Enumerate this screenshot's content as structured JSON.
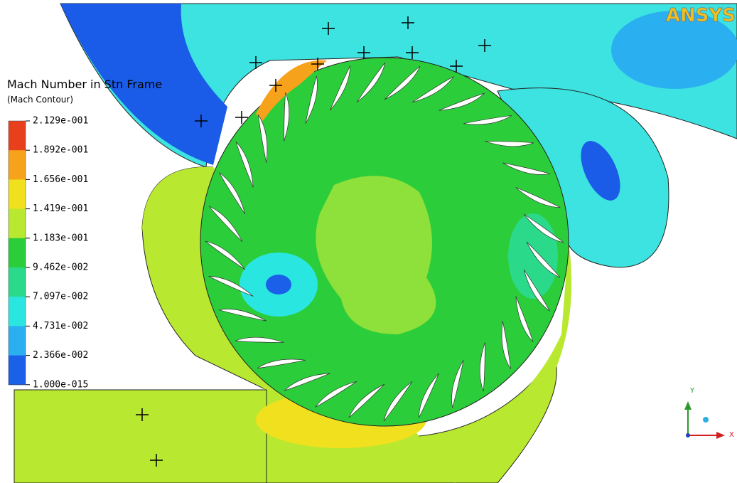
{
  "legend": {
    "title": "Mach Number in Stn Frame",
    "subtitle": "(Mach Contour)",
    "labels": [
      "2.129e-001",
      "1.892e-001",
      "1.656e-001",
      "1.419e-001",
      "1.183e-001",
      "9.462e-002",
      "7.097e-002",
      "4.731e-002",
      "2.366e-002",
      "1.000e-015"
    ]
  },
  "logo": "ANSYS",
  "axes": {
    "y": "Y",
    "x": "X"
  }
}
